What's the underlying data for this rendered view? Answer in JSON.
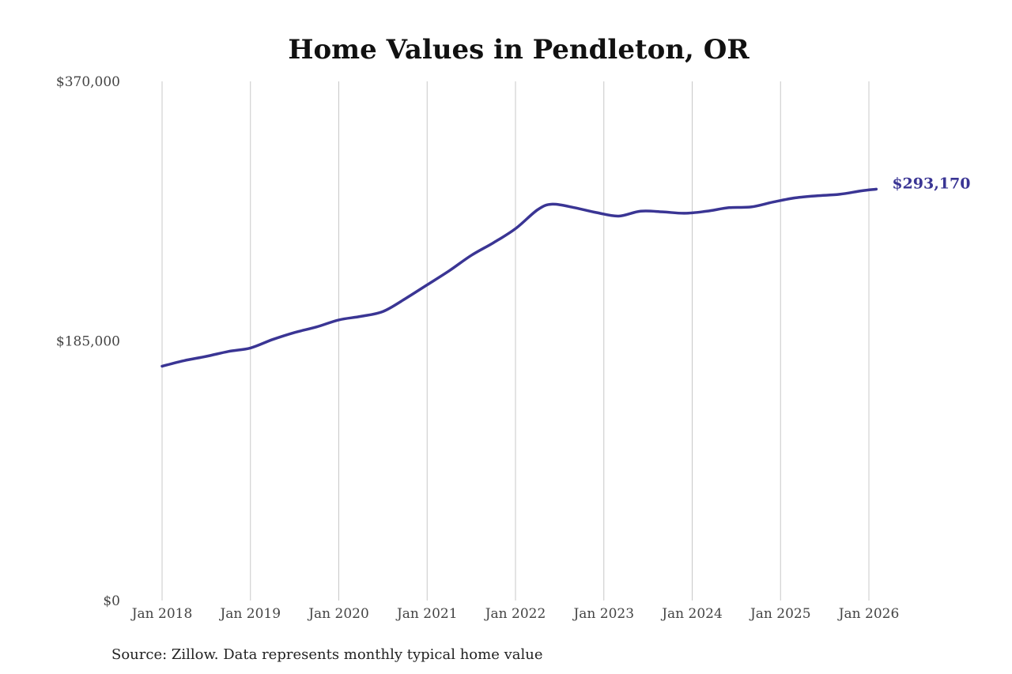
{
  "chart_data": {
    "type": "line",
    "title": "Home Values in Pendleton, OR",
    "source": "Source: Zillow. Data represents monthly typical home value",
    "y_ticks": [
      {
        "value": 0,
        "label": "$0"
      },
      {
        "value": 185000,
        "label": "$185,000"
      },
      {
        "value": 370000,
        "label": "$370,000"
      }
    ],
    "ylim": [
      0,
      370000
    ],
    "x_ticks": [
      {
        "value": "2018-01",
        "label": "Jan 2018"
      },
      {
        "value": "2019-01",
        "label": "Jan 2019"
      },
      {
        "value": "2020-01",
        "label": "Jan 2020"
      },
      {
        "value": "2021-01",
        "label": "Jan 2021"
      },
      {
        "value": "2022-01",
        "label": "Jan 2022"
      },
      {
        "value": "2023-01",
        "label": "Jan 2023"
      },
      {
        "value": "2024-01",
        "label": "Jan 2024"
      },
      {
        "value": "2025-01",
        "label": "Jan 2025"
      },
      {
        "value": "2026-01",
        "label": "Jan 2026"
      }
    ],
    "xlim": [
      "2018-01",
      "2026-01"
    ],
    "grid": "vertical",
    "series": [
      {
        "color": "#3a3594",
        "end_label": "$293,170",
        "points": [
          [
            "2018-01",
            167000
          ],
          [
            "2018-04",
            171000
          ],
          [
            "2018-07",
            174000
          ],
          [
            "2018-10",
            177500
          ],
          [
            "2019-01",
            180000
          ],
          [
            "2019-04",
            186000
          ],
          [
            "2019-07",
            191000
          ],
          [
            "2019-10",
            195000
          ],
          [
            "2020-01",
            200000
          ],
          [
            "2020-04",
            202500
          ],
          [
            "2020-07",
            206000
          ],
          [
            "2020-10",
            215000
          ],
          [
            "2021-01",
            225000
          ],
          [
            "2021-04",
            235000
          ],
          [
            "2021-07",
            246000
          ],
          [
            "2021-10",
            255000
          ],
          [
            "2022-01",
            265000
          ],
          [
            "2022-04",
            278500
          ],
          [
            "2022-06",
            282500
          ],
          [
            "2022-09",
            280000
          ],
          [
            "2022-12",
            276500
          ],
          [
            "2023-03",
            274000
          ],
          [
            "2023-06",
            277500
          ],
          [
            "2023-09",
            277000
          ],
          [
            "2023-12",
            276000
          ],
          [
            "2024-03",
            277500
          ],
          [
            "2024-06",
            280000
          ],
          [
            "2024-09",
            280500
          ],
          [
            "2024-12",
            284000
          ],
          [
            "2025-03",
            287000
          ],
          [
            "2025-06",
            288500
          ],
          [
            "2025-09",
            289500
          ],
          [
            "2025-12",
            292000
          ],
          [
            "2026-02",
            293170
          ]
        ]
      }
    ]
  }
}
